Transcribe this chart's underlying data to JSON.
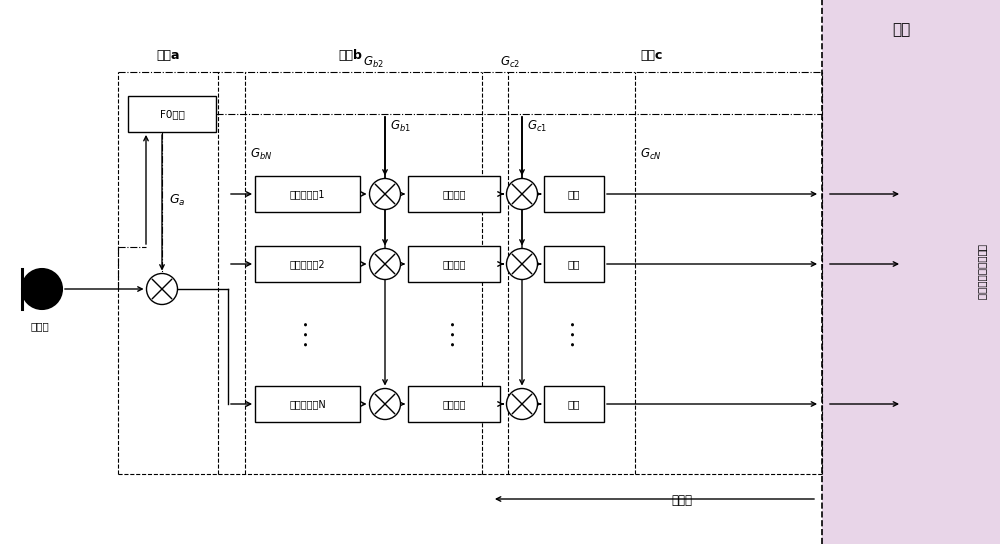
{
  "fig_width": 10.0,
  "fig_height": 5.44,
  "step_a_label": "步骤a",
  "step_b_label": "步骤b",
  "step_c_label": "步骤c",
  "f0_label": "F0处理",
  "bandpass1_label": "带通滤波器1",
  "bandpass2_label": "带通滤波器2",
  "bandpassN_label": "带通滤波器N",
  "envelope1_label": "包络提取",
  "envelope2_label": "包络提取",
  "envelopeN_label": "包络提取",
  "compress1_label": "压缩",
  "compress2_label": "压缩",
  "compressN_label": "压缩",
  "mic_label": "传声器",
  "outside_label": "体外机",
  "scalp_label": "头皮",
  "right_side_label": "蜗内电极（植入体）",
  "scalp_color": "#e8d5e8",
  "box_color": "#ffffff",
  "line_color": "#000000"
}
